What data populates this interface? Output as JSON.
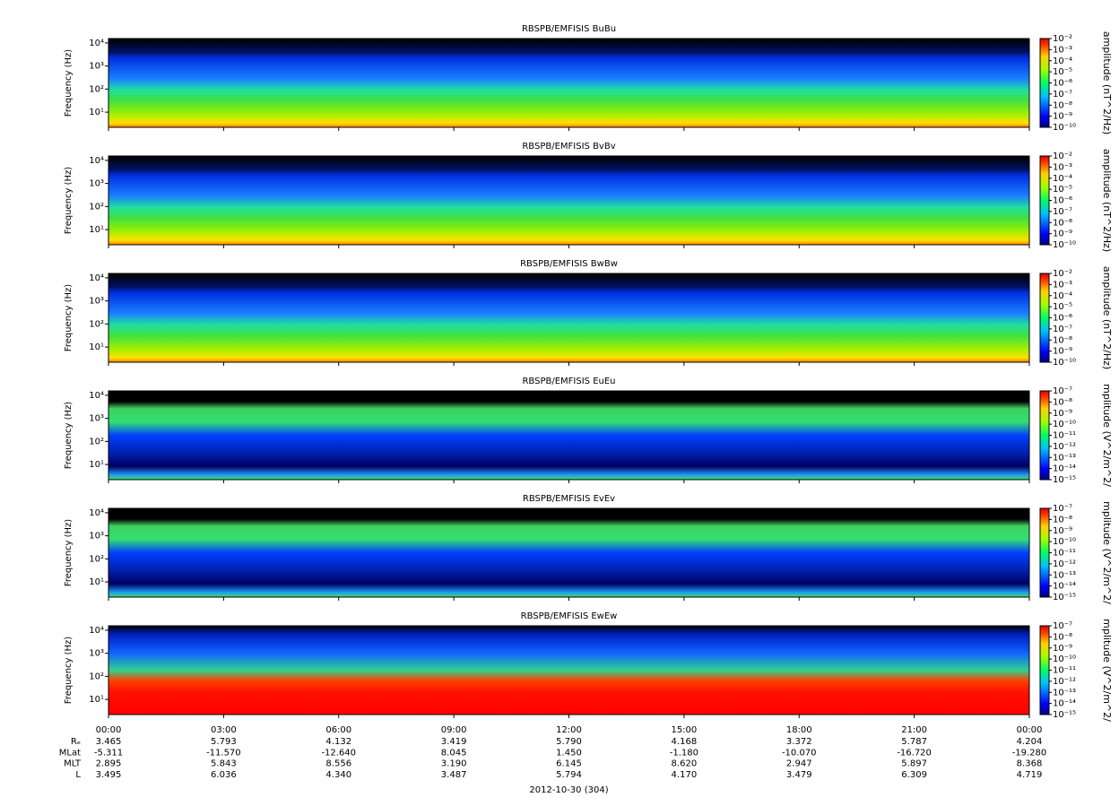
{
  "chart_data": [
    {
      "type": "spectrogram",
      "title": "RBSPB/EMFISIS  BuBu",
      "ylabel": "Frequency (Hz)",
      "log_y": true,
      "ylim": [
        2.2,
        15500
      ],
      "yticks": [
        {
          "value": 10,
          "label": "10¹"
        },
        {
          "value": 100,
          "label": "10²"
        },
        {
          "value": 1000,
          "label": "10³"
        },
        {
          "value": 10000,
          "label": "10⁴"
        }
      ],
      "colorbar": {
        "label": "amplitude (nT^2/Hz)",
        "log": true,
        "lim": [
          1e-10,
          0.01
        ],
        "ticks": [
          {
            "value": 1e-10,
            "label": "10⁻¹⁰"
          },
          {
            "value": 1e-09,
            "label": "10⁻⁹"
          },
          {
            "value": 1e-08,
            "label": "10⁻⁸"
          },
          {
            "value": 1e-07,
            "label": "10⁻⁷"
          },
          {
            "value": 1e-06,
            "label": "10⁻⁶"
          },
          {
            "value": 1e-05,
            "label": "10⁻⁵"
          },
          {
            "value": 0.0001,
            "label": "10⁻⁴"
          },
          {
            "value": 0.001,
            "label": "10⁻³"
          },
          {
            "value": 0.01,
            "label": "10⁻²"
          }
        ]
      }
    },
    {
      "type": "spectrogram",
      "title": "RBSPB/EMFISIS  BvBv",
      "ylabel": "Frequency (Hz)",
      "log_y": true,
      "ylim": [
        2.2,
        15500
      ],
      "yticks": [
        {
          "value": 10,
          "label": "10¹"
        },
        {
          "value": 100,
          "label": "10²"
        },
        {
          "value": 1000,
          "label": "10³"
        },
        {
          "value": 10000,
          "label": "10⁴"
        }
      ],
      "colorbar": {
        "label": "amplitude (nT^2/Hz)",
        "log": true,
        "lim": [
          1e-10,
          0.01
        ],
        "ticks": [
          {
            "value": 1e-10,
            "label": "10⁻¹⁰"
          },
          {
            "value": 1e-09,
            "label": "10⁻⁹"
          },
          {
            "value": 1e-08,
            "label": "10⁻⁸"
          },
          {
            "value": 1e-07,
            "label": "10⁻⁷"
          },
          {
            "value": 1e-06,
            "label": "10⁻⁶"
          },
          {
            "value": 1e-05,
            "label": "10⁻⁵"
          },
          {
            "value": 0.0001,
            "label": "10⁻⁴"
          },
          {
            "value": 0.001,
            "label": "10⁻³"
          },
          {
            "value": 0.01,
            "label": "10⁻²"
          }
        ]
      }
    },
    {
      "type": "spectrogram",
      "title": "RBSPB/EMFISIS  BwBw",
      "ylabel": "Frequency (Hz)",
      "log_y": true,
      "ylim": [
        2.2,
        15500
      ],
      "yticks": [
        {
          "value": 10,
          "label": "10¹"
        },
        {
          "value": 100,
          "label": "10²"
        },
        {
          "value": 1000,
          "label": "10³"
        },
        {
          "value": 10000,
          "label": "10⁴"
        }
      ],
      "colorbar": {
        "label": "amplitude (nT^2/Hz)",
        "log": true,
        "lim": [
          1e-10,
          0.01
        ],
        "ticks": [
          {
            "value": 1e-10,
            "label": "10⁻¹⁰"
          },
          {
            "value": 1e-09,
            "label": "10⁻⁹"
          },
          {
            "value": 1e-08,
            "label": "10⁻⁸"
          },
          {
            "value": 1e-07,
            "label": "10⁻⁷"
          },
          {
            "value": 1e-06,
            "label": "10⁻⁶"
          },
          {
            "value": 1e-05,
            "label": "10⁻⁵"
          },
          {
            "value": 0.0001,
            "label": "10⁻⁴"
          },
          {
            "value": 0.001,
            "label": "10⁻³"
          },
          {
            "value": 0.01,
            "label": "10⁻²"
          }
        ]
      }
    },
    {
      "type": "spectrogram",
      "title": "RBSPB/EMFISIS  EuEu",
      "ylabel": "Frequency (Hz)",
      "log_y": true,
      "ylim": [
        2.2,
        15500
      ],
      "yticks": [
        {
          "value": 10,
          "label": "10¹"
        },
        {
          "value": 100,
          "label": "10²"
        },
        {
          "value": 1000,
          "label": "10³"
        },
        {
          "value": 10000,
          "label": "10⁴"
        }
      ],
      "colorbar": {
        "label": "mplitude (V^2/m^2/",
        "log": true,
        "lim": [
          1e-15,
          1e-07
        ],
        "ticks": [
          {
            "value": 1e-15,
            "label": "10⁻¹⁵"
          },
          {
            "value": 1e-14,
            "label": "10⁻¹⁴"
          },
          {
            "value": 1e-13,
            "label": "10⁻¹³"
          },
          {
            "value": 1e-12,
            "label": "10⁻¹²"
          },
          {
            "value": 1e-11,
            "label": "10⁻¹¹"
          },
          {
            "value": 1e-10,
            "label": "10⁻¹⁰"
          },
          {
            "value": 1e-09,
            "label": "10⁻⁹"
          },
          {
            "value": 1e-08,
            "label": "10⁻⁸"
          },
          {
            "value": 1e-07,
            "label": "10⁻⁷"
          }
        ]
      }
    },
    {
      "type": "spectrogram",
      "title": "RBSPB/EMFISIS  EvEv",
      "ylabel": "Frequency (Hz)",
      "log_y": true,
      "ylim": [
        2.2,
        15500
      ],
      "yticks": [
        {
          "value": 10,
          "label": "10¹"
        },
        {
          "value": 100,
          "label": "10²"
        },
        {
          "value": 1000,
          "label": "10³"
        },
        {
          "value": 10000,
          "label": "10⁴"
        }
      ],
      "colorbar": {
        "label": "mplitude (V^2/m^2/",
        "log": true,
        "lim": [
          1e-15,
          1e-07
        ],
        "ticks": [
          {
            "value": 1e-15,
            "label": "10⁻¹⁵"
          },
          {
            "value": 1e-14,
            "label": "10⁻¹⁴"
          },
          {
            "value": 1e-13,
            "label": "10⁻¹³"
          },
          {
            "value": 1e-12,
            "label": "10⁻¹²"
          },
          {
            "value": 1e-11,
            "label": "10⁻¹¹"
          },
          {
            "value": 1e-10,
            "label": "10⁻¹⁰"
          },
          {
            "value": 1e-09,
            "label": "10⁻⁹"
          },
          {
            "value": 1e-08,
            "label": "10⁻⁸"
          },
          {
            "value": 1e-07,
            "label": "10⁻⁷"
          }
        ]
      }
    },
    {
      "type": "spectrogram",
      "title": "RBSPB/EMFISIS  EwEw",
      "ylabel": "Frequency (Hz)",
      "log_y": true,
      "ylim": [
        2.2,
        15500
      ],
      "yticks": [
        {
          "value": 10,
          "label": "10¹"
        },
        {
          "value": 100,
          "label": "10²"
        },
        {
          "value": 1000,
          "label": "10³"
        },
        {
          "value": 10000,
          "label": "10⁴"
        }
      ],
      "colorbar": {
        "label": "mplitude (V^2/m^2/",
        "log": true,
        "lim": [
          1e-15,
          1e-07
        ],
        "ticks": [
          {
            "value": 1e-15,
            "label": "10⁻¹⁵"
          },
          {
            "value": 1e-14,
            "label": "10⁻¹⁴"
          },
          {
            "value": 1e-13,
            "label": "10⁻¹³"
          },
          {
            "value": 1e-12,
            "label": "10⁻¹²"
          },
          {
            "value": 1e-11,
            "label": "10⁻¹¹"
          },
          {
            "value": 1e-10,
            "label": "10⁻¹⁰"
          },
          {
            "value": 1e-09,
            "label": "10⁻⁹"
          },
          {
            "value": 1e-08,
            "label": "10⁻⁸"
          },
          {
            "value": 1e-07,
            "label": "10⁻⁷"
          }
        ]
      }
    }
  ],
  "time_axis": {
    "xlim": [
      0,
      24
    ],
    "xticks": [
      {
        "value": 0,
        "label": "00:00"
      },
      {
        "value": 3,
        "label": "03:00"
      },
      {
        "value": 6,
        "label": "06:00"
      },
      {
        "value": 9,
        "label": "09:00"
      },
      {
        "value": 12,
        "label": "12:00"
      },
      {
        "value": 15,
        "label": "15:00"
      },
      {
        "value": 18,
        "label": "18:00"
      },
      {
        "value": 21,
        "label": "21:00"
      },
      {
        "value": 24,
        "label": "00:00"
      }
    ],
    "ephemeris": [
      {
        "label": "Rₑ",
        "values": [
          "3.465",
          "5.793",
          "4.132",
          "3.419",
          "5.790",
          "4.168",
          "3.372",
          "5.787",
          "4.204"
        ]
      },
      {
        "label": "MLat",
        "values": [
          "-5.311",
          "-11.570",
          "-12.640",
          "8.045",
          "1.450",
          "-1.180",
          "-10.070",
          "-16.720",
          "-19.280"
        ]
      },
      {
        "label": "MLT",
        "values": [
          "2.895",
          "5.843",
          "8.556",
          "3.190",
          "6.145",
          "8.620",
          "2.947",
          "5.897",
          "8.368"
        ]
      },
      {
        "label": "L",
        "values": [
          "3.495",
          "6.036",
          "4.340",
          "3.487",
          "5.794",
          "4.170",
          "3.479",
          "6.309",
          "4.719"
        ]
      }
    ],
    "date": "2012-10-30 (304)"
  }
}
